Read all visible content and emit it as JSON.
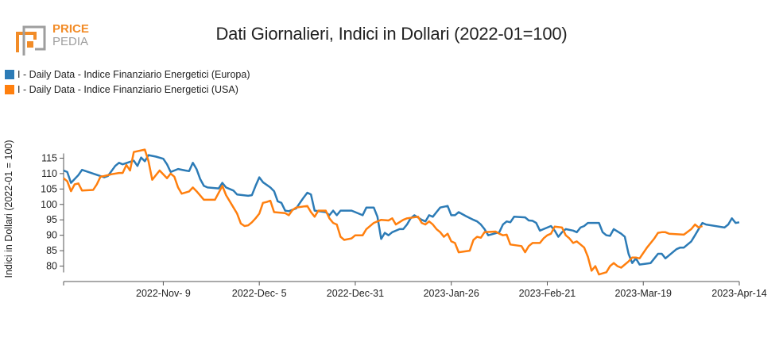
{
  "logo": {
    "text_top": "PRICE",
    "text_bottom": "PEDIA",
    "color_orange": "#f28c28",
    "color_grey": "#9e9e9e"
  },
  "chart_data": {
    "type": "line",
    "title": "Dati Giornalieri, Indici in Dollari (2022-01=100)",
    "ylabel": "Indici in Dollari (2022-01 = 100)",
    "xlabel": "",
    "ylim": [
      75,
      120
    ],
    "yticks": [
      80,
      85,
      90,
      95,
      100,
      105,
      110,
      115
    ],
    "xlim": [
      "2022-10-13",
      "2023-04-14"
    ],
    "xticks": [
      "2022-Nov- 9",
      "2022-Dec- 5",
      "2022-Dec-31",
      "2023-Jan-26",
      "2023-Feb-21",
      "2023-Mar-19",
      "2023-Apr-14"
    ],
    "xtick_dates": [
      "2022-11-09",
      "2022-12-05",
      "2022-12-31",
      "2023-01-26",
      "2023-02-21",
      "2023-03-19",
      "2023-04-14"
    ],
    "grid": false,
    "legend_position": "top-left",
    "series": [
      {
        "name": "I - Daily Data - Indice Finanziario Energetici (Europa)",
        "color": "#2c7bb6",
        "points": [
          [
            "2022-10-13",
            111
          ],
          [
            "2022-10-14",
            110.5
          ],
          [
            "2022-10-15",
            107
          ],
          [
            "2022-10-17",
            109.5
          ],
          [
            "2022-10-18",
            111.2
          ],
          [
            "2022-10-21",
            110
          ],
          [
            "2022-10-24",
            108.8
          ],
          [
            "2022-10-25",
            109.2
          ],
          [
            "2022-10-27",
            112.5
          ],
          [
            "2022-10-28",
            113.5
          ],
          [
            "2022-10-29",
            113
          ],
          [
            "2022-10-31",
            113.8
          ],
          [
            "2022-11-01",
            114.2
          ],
          [
            "2022-11-02",
            112.5
          ],
          [
            "2022-11-03",
            115.2
          ],
          [
            "2022-11-04",
            114
          ],
          [
            "2022-11-05",
            116
          ],
          [
            "2022-11-07",
            115.5
          ],
          [
            "2022-11-09",
            114.8
          ],
          [
            "2022-11-10",
            113
          ],
          [
            "2022-11-11",
            110.5
          ],
          [
            "2022-11-13",
            111.5
          ],
          [
            "2022-11-15",
            111
          ],
          [
            "2022-11-16",
            110.8
          ],
          [
            "2022-11-17",
            113.5
          ],
          [
            "2022-11-18",
            111.5
          ],
          [
            "2022-11-19",
            108.2
          ],
          [
            "2022-11-20",
            106
          ],
          [
            "2022-11-21",
            105.5
          ],
          [
            "2022-11-24",
            105.2
          ],
          [
            "2022-11-25",
            107
          ],
          [
            "2022-11-26",
            105.5
          ],
          [
            "2022-11-28",
            104.5
          ],
          [
            "2022-11-29",
            103.2
          ],
          [
            "2022-12-02",
            102.8
          ],
          [
            "2022-12-03",
            103
          ],
          [
            "2022-12-04",
            106
          ],
          [
            "2022-12-05",
            108.8
          ],
          [
            "2022-12-06",
            107.2
          ],
          [
            "2022-12-08",
            105.5
          ],
          [
            "2022-12-09",
            104.3
          ],
          [
            "2022-12-10",
            101
          ],
          [
            "2022-12-11",
            100.5
          ],
          [
            "2022-12-12",
            98
          ],
          [
            "2022-12-13",
            97.8
          ],
          [
            "2022-12-15",
            98.7
          ],
          [
            "2022-12-16",
            100.5
          ],
          [
            "2022-12-17",
            102.2
          ],
          [
            "2022-12-18",
            103.8
          ],
          [
            "2022-12-19",
            103.2
          ],
          [
            "2022-12-20",
            98
          ],
          [
            "2022-12-23",
            97.5
          ],
          [
            "2022-12-24",
            96.5
          ],
          [
            "2022-12-25",
            98
          ],
          [
            "2022-12-26",
            96.5
          ],
          [
            "2022-12-27",
            98
          ],
          [
            "2022-12-30",
            98
          ],
          [
            "2022-12-31",
            97.5
          ],
          [
            "2023-01-02",
            96.5
          ],
          [
            "2023-01-03",
            99
          ],
          [
            "2023-01-05",
            99
          ],
          [
            "2023-01-06",
            96
          ],
          [
            "2023-01-07",
            88.8
          ],
          [
            "2023-01-08",
            90.8
          ],
          [
            "2023-01-09",
            90
          ],
          [
            "2023-01-10",
            91
          ],
          [
            "2023-01-12",
            92
          ],
          [
            "2023-01-13",
            92
          ],
          [
            "2023-01-14",
            93.5
          ],
          [
            "2023-01-15",
            95.5
          ],
          [
            "2023-01-16",
            96.5
          ],
          [
            "2023-01-18",
            95
          ],
          [
            "2023-01-19",
            94.5
          ],
          [
            "2023-01-20",
            96.5
          ],
          [
            "2023-01-21",
            96
          ],
          [
            "2023-01-22",
            97.5
          ],
          [
            "2023-01-23",
            99
          ],
          [
            "2023-01-25",
            99.5
          ],
          [
            "2023-01-26",
            96.5
          ],
          [
            "2023-01-27",
            96.5
          ],
          [
            "2023-01-28",
            97.5
          ],
          [
            "2023-01-30",
            96.2
          ],
          [
            "2023-02-01",
            95
          ],
          [
            "2023-02-02",
            94.5
          ],
          [
            "2023-02-03",
            93.5
          ],
          [
            "2023-02-04",
            92
          ],
          [
            "2023-02-05",
            90
          ],
          [
            "2023-02-08",
            91
          ],
          [
            "2023-02-09",
            93.5
          ],
          [
            "2023-02-10",
            94.5
          ],
          [
            "2023-02-11",
            94.2
          ],
          [
            "2023-02-12",
            96
          ],
          [
            "2023-02-15",
            95.8
          ],
          [
            "2023-02-16",
            94.8
          ],
          [
            "2023-02-17",
            94.7
          ],
          [
            "2023-02-18",
            94
          ],
          [
            "2023-02-19",
            91.5
          ],
          [
            "2023-02-20",
            92
          ],
          [
            "2023-02-22",
            93
          ],
          [
            "2023-02-23",
            91.5
          ],
          [
            "2023-02-24",
            89.5
          ],
          [
            "2023-02-25",
            91
          ],
          [
            "2023-02-26",
            92
          ],
          [
            "2023-02-28",
            91.5
          ],
          [
            "2023-03-01",
            91
          ],
          [
            "2023-03-02",
            92.5
          ],
          [
            "2023-03-03",
            93
          ],
          [
            "2023-03-04",
            94
          ],
          [
            "2023-03-07",
            94
          ],
          [
            "2023-03-08",
            91
          ],
          [
            "2023-03-09",
            90
          ],
          [
            "2023-03-10",
            89.8
          ],
          [
            "2023-03-11",
            92
          ],
          [
            "2023-03-13",
            90.5
          ],
          [
            "2023-03-14",
            89.5
          ],
          [
            "2023-03-15",
            84
          ],
          [
            "2023-03-16",
            81
          ],
          [
            "2023-03-17",
            82.5
          ],
          [
            "2023-03-18",
            80.5
          ],
          [
            "2023-03-21",
            81
          ],
          [
            "2023-03-22",
            82.5
          ],
          [
            "2023-03-23",
            84
          ],
          [
            "2023-03-24",
            84
          ],
          [
            "2023-03-25",
            82.5
          ],
          [
            "2023-03-26",
            83.5
          ],
          [
            "2023-03-28",
            85.5
          ],
          [
            "2023-03-29",
            86
          ],
          [
            "2023-03-30",
            86
          ],
          [
            "2023-04-01",
            88
          ],
          [
            "2023-04-02",
            90
          ],
          [
            "2023-04-03",
            92
          ],
          [
            "2023-04-04",
            94
          ],
          [
            "2023-04-05",
            93.5
          ],
          [
            "2023-04-10",
            92.5
          ],
          [
            "2023-04-11",
            93.5
          ],
          [
            "2023-04-12",
            95.5
          ],
          [
            "2023-04-13",
            94
          ],
          [
            "2023-04-14",
            94.2
          ]
        ]
      },
      {
        "name": "I - Daily Data - Indice Finanziario Energetici (USA)",
        "color": "#ff7f0e",
        "points": [
          [
            "2022-10-13",
            108.5
          ],
          [
            "2022-10-14",
            107.5
          ],
          [
            "2022-10-15",
            104.3
          ],
          [
            "2022-10-16",
            106.5
          ],
          [
            "2022-10-17",
            106.8
          ],
          [
            "2022-10-18",
            104.5
          ],
          [
            "2022-10-21",
            104.7
          ],
          [
            "2022-10-22",
            106.5
          ],
          [
            "2022-10-23",
            109
          ],
          [
            "2022-10-24",
            109.2
          ],
          [
            "2022-10-26",
            109.8
          ],
          [
            "2022-10-28",
            110.2
          ],
          [
            "2022-10-29",
            110.2
          ],
          [
            "2022-10-30",
            112.8
          ],
          [
            "2022-10-31",
            111
          ],
          [
            "2022-11-01",
            117
          ],
          [
            "2022-11-04",
            117.8
          ],
          [
            "2022-11-05",
            114
          ],
          [
            "2022-11-06",
            108
          ],
          [
            "2022-11-08",
            111
          ],
          [
            "2022-11-10",
            108.5
          ],
          [
            "2022-11-11",
            110
          ],
          [
            "2022-11-12",
            109
          ],
          [
            "2022-11-13",
            105.5
          ],
          [
            "2022-11-14",
            103.5
          ],
          [
            "2022-11-16",
            104.2
          ],
          [
            "2022-11-17",
            105.5
          ],
          [
            "2022-11-18",
            104.3
          ],
          [
            "2022-11-20",
            101.5
          ],
          [
            "2022-11-23",
            101.5
          ],
          [
            "2022-11-25",
            106
          ],
          [
            "2022-11-26",
            103
          ],
          [
            "2022-11-28",
            99
          ],
          [
            "2022-11-29",
            97
          ],
          [
            "2022-11-30",
            93.8
          ],
          [
            "2022-12-01",
            93
          ],
          [
            "2022-12-02",
            93.2
          ],
          [
            "2022-12-03",
            94.2
          ],
          [
            "2022-12-04",
            95.5
          ],
          [
            "2022-12-05",
            97
          ],
          [
            "2022-12-06",
            100.5
          ],
          [
            "2022-12-07",
            100.8
          ],
          [
            "2022-12-08",
            101.2
          ],
          [
            "2022-12-09",
            97.5
          ],
          [
            "2022-12-12",
            97.2
          ],
          [
            "2022-12-13",
            96.5
          ],
          [
            "2022-12-14",
            98.2
          ],
          [
            "2022-12-15",
            99
          ],
          [
            "2022-12-18",
            99.5
          ],
          [
            "2022-12-19",
            97.5
          ],
          [
            "2022-12-20",
            96
          ],
          [
            "2022-12-21",
            98
          ],
          [
            "2022-12-23",
            98
          ],
          [
            "2022-12-24",
            95.5
          ],
          [
            "2022-12-25",
            94
          ],
          [
            "2022-12-26",
            93.5
          ],
          [
            "2022-12-27",
            89.5
          ],
          [
            "2022-12-28",
            88.5
          ],
          [
            "2022-12-30",
            89
          ],
          [
            "2022-12-31",
            90
          ],
          [
            "2023-01-02",
            90
          ],
          [
            "2023-01-03",
            92
          ],
          [
            "2023-01-05",
            94
          ],
          [
            "2023-01-07",
            95
          ],
          [
            "2023-01-09",
            94.8
          ],
          [
            "2023-01-10",
            95.5
          ],
          [
            "2023-01-11",
            93.5
          ],
          [
            "2023-01-13",
            95
          ],
          [
            "2023-01-14",
            95.5
          ],
          [
            "2023-01-17",
            96
          ],
          [
            "2023-01-18",
            94
          ],
          [
            "2023-01-19",
            93.5
          ],
          [
            "2023-01-20",
            94.5
          ],
          [
            "2023-01-21",
            93.5
          ],
          [
            "2023-01-22",
            92
          ],
          [
            "2023-01-23",
            91
          ],
          [
            "2023-01-24",
            89.5
          ],
          [
            "2023-01-25",
            90.5
          ],
          [
            "2023-01-26",
            88
          ],
          [
            "2023-01-27",
            87.5
          ],
          [
            "2023-01-28",
            84.5
          ],
          [
            "2023-01-31",
            85
          ],
          [
            "2023-02-01",
            88.5
          ],
          [
            "2023-02-02",
            89.5
          ],
          [
            "2023-02-03",
            89.2
          ],
          [
            "2023-02-04",
            91
          ],
          [
            "2023-02-07",
            91.2
          ],
          [
            "2023-02-08",
            90.5
          ],
          [
            "2023-02-09",
            90
          ],
          [
            "2023-02-10",
            90.2
          ],
          [
            "2023-02-11",
            87
          ],
          [
            "2023-02-14",
            86.5
          ],
          [
            "2023-02-15",
            84.5
          ],
          [
            "2023-02-16",
            86.5
          ],
          [
            "2023-02-17",
            87.5
          ],
          [
            "2023-02-19",
            87.5
          ],
          [
            "2023-02-20",
            89
          ],
          [
            "2023-02-21",
            90
          ],
          [
            "2023-02-22",
            90.5
          ],
          [
            "2023-02-23",
            92.8
          ],
          [
            "2023-02-25",
            92.5
          ],
          [
            "2023-02-26",
            90
          ],
          [
            "2023-02-27",
            89
          ],
          [
            "2023-02-28",
            87.5
          ],
          [
            "2023-03-01",
            88
          ],
          [
            "2023-03-02",
            87
          ],
          [
            "2023-03-03",
            86
          ],
          [
            "2023-03-04",
            83
          ],
          [
            "2023-03-05",
            78.5
          ],
          [
            "2023-03-06",
            80
          ],
          [
            "2023-03-07",
            77.3
          ],
          [
            "2023-03-09",
            78
          ],
          [
            "2023-03-10",
            80
          ],
          [
            "2023-03-11",
            81
          ],
          [
            "2023-03-12",
            80
          ],
          [
            "2023-03-13",
            79.5
          ],
          [
            "2023-03-15",
            81.5
          ],
          [
            "2023-03-16",
            82.8
          ],
          [
            "2023-03-17",
            82.8
          ],
          [
            "2023-03-18",
            82.5
          ],
          [
            "2023-03-20",
            86
          ],
          [
            "2023-03-22",
            89
          ],
          [
            "2023-03-23",
            90.8
          ],
          [
            "2023-03-24",
            91
          ],
          [
            "2023-03-25",
            91
          ],
          [
            "2023-03-26",
            90.5
          ],
          [
            "2023-03-30",
            90.2
          ],
          [
            "2023-04-01",
            92
          ],
          [
            "2023-04-02",
            93.5
          ],
          [
            "2023-04-03",
            92.5
          ],
          [
            "2023-04-04",
            93
          ]
        ]
      }
    ]
  }
}
